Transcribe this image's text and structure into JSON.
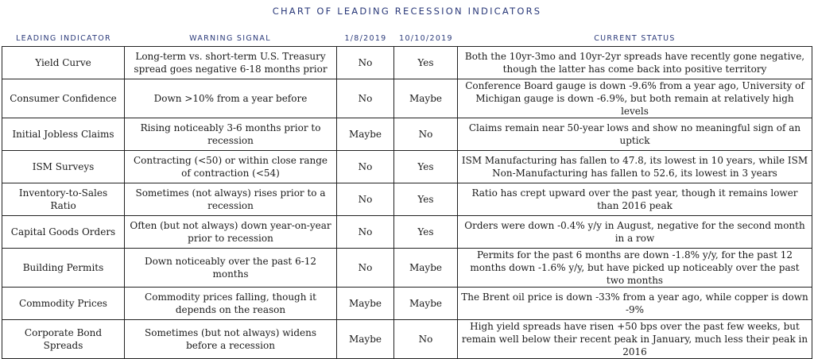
{
  "title": "CHART OF LEADING RECESSION INDICATORS",
  "headers": {
    "indicator": "LEADING INDICATOR",
    "signal": "WARNING SIGNAL",
    "date1": "1/8/2019",
    "date2": "10/10/2019",
    "status": "CURRENT STATUS"
  },
  "rows": [
    {
      "indicator": "Yield Curve",
      "signal": "Long-term vs. short-term U.S. Treasury spread goes negative 6-18 months prior",
      "date1": "No",
      "date2": "Yes",
      "status": "Both the 10yr-3mo and 10yr-2yr spreads have recently gone negative, though the latter has come back into positive territory"
    },
    {
      "indicator": "Consumer Confidence",
      "signal": "Down >10% from a year before",
      "date1": "No",
      "date2": "Maybe",
      "status": "Conference Board gauge is down -9.6% from a year ago, University of Michigan gauge is down -6.9%, but both remain at relatively high levels"
    },
    {
      "indicator": "Initial Jobless Claims",
      "signal": "Rising noticeably 3-6 months prior to recession",
      "date1": "Maybe",
      "date2": "No",
      "status": "Claims remain near 50-year lows and show no meaningful sign of an uptick"
    },
    {
      "indicator": "ISM Surveys",
      "signal": "Contracting (<50) or within close range of contraction (<54)",
      "date1": "No",
      "date2": "Yes",
      "status": "ISM Manufacturing has fallen to 47.8, its lowest in 10 years, while ISM Non-Manufacturing has fallen to 52.6, its lowest in 3 years"
    },
    {
      "indicator": "Inventory-to-Sales Ratio",
      "signal": "Sometimes (not always) rises prior to a recession",
      "date1": "No",
      "date2": "Yes",
      "status": "Ratio has crept upward over the past year, though it remains lower than 2016 peak"
    },
    {
      "indicator": "Capital Goods Orders",
      "signal": "Often (but not always) down year-on-year prior to recession",
      "date1": "No",
      "date2": "Yes",
      "status": "Orders were down -0.4% y/y in August, negative for the second month in a row"
    },
    {
      "indicator": "Building Permits",
      "signal": "Down noticeably over the past 6-12 months",
      "date1": "No",
      "date2": "Maybe",
      "status": "Permits for the past 6 months are down -1.8% y/y, for the past 12 months down -1.6% y/y, but have picked up noticeably over the past two months"
    },
    {
      "indicator": "Commodity Prices",
      "signal": "Commodity prices falling, though it depends on the reason",
      "date1": "Maybe",
      "date2": "Maybe",
      "status": "The Brent oil price is down -33% from a year ago, while copper is down -9%"
    },
    {
      "indicator": "Corporate Bond Spreads",
      "signal": "Sometimes (but not always) widens before a recession",
      "date1": "Maybe",
      "date2": "No",
      "status": "High yield spreads have risen +50 bps over the past few weeks, but remain well below their recent peak in January, much less their peak in 2016"
    }
  ]
}
